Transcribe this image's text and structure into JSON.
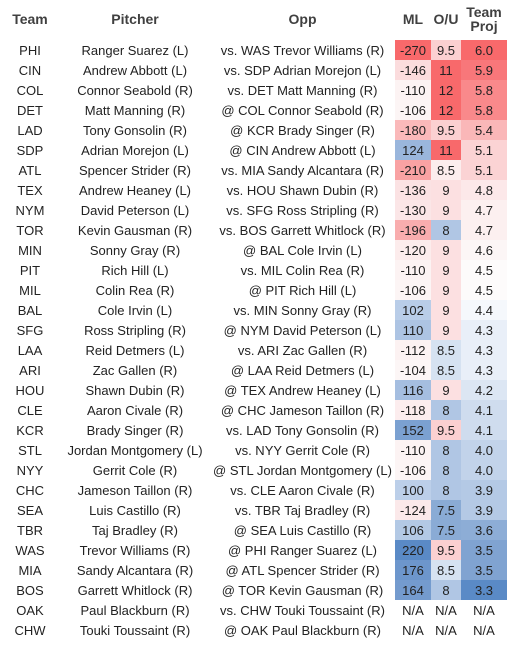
{
  "header": {
    "team": "Team",
    "pitcher": "Pitcher",
    "opp": "Opp",
    "ml": "ML",
    "ou": "O/U",
    "proj": "Team Proj"
  },
  "colors": {
    "red": "#f8696b",
    "blue": "#5a8ac6",
    "white": "#ffffff"
  },
  "rows": [
    {
      "team": "PHI",
      "pitcher": "Ranger Suarez (L)",
      "opp": "vs. WAS Trevor Williams (R)",
      "ml": "-270",
      "ou": "9.5",
      "proj": "6.0",
      "ml_c": "#f8696b",
      "ou_c": "#fbd0d1",
      "proj_c": "#f8696b"
    },
    {
      "team": "CIN",
      "pitcher": "Andrew Abbott (L)",
      "opp": "vs. SDP Adrian Morejon (L)",
      "ml": "-146",
      "ou": "11",
      "proj": "5.9",
      "ml_c": "#fbdcdd",
      "ou_c": "#f8696b",
      "proj_c": "#f8777a"
    },
    {
      "team": "COL",
      "pitcher": "Connor Seabold (R)",
      "opp": "vs. DET Matt Manning (R)",
      "ml": "-110",
      "ou": "12",
      "proj": "5.8",
      "ml_c": "#fcf3f3",
      "ou_c": "#f8696b",
      "proj_c": "#f9898b"
    },
    {
      "team": "DET",
      "pitcher": "Matt Manning (R)",
      "opp": "@ COL Connor Seabold (R)",
      "ml": "-106",
      "ou": "12",
      "proj": "5.8",
      "ml_c": "#fcf5f5",
      "ou_c": "#f8696b",
      "proj_c": "#f9898b"
    },
    {
      "team": "LAD",
      "pitcher": "Tony Gonsolin (R)",
      "opp": "@ KCR Brady Singer (R)",
      "ml": "-180",
      "ou": "9.5",
      "proj": "5.4",
      "ml_c": "#fab9ba",
      "ou_c": "#fbd0d1",
      "proj_c": "#fab7b8"
    },
    {
      "team": "SDP",
      "pitcher": "Adrian Morejon (L)",
      "opp": "@ CIN Andrew Abbott (L)",
      "ml": "124",
      "ou": "11",
      "proj": "5.1",
      "ml_c": "#9ab6dc",
      "ou_c": "#f8696b",
      "proj_c": "#fbd3d4"
    },
    {
      "team": "ATL",
      "pitcher": "Spencer Strider (R)",
      "opp": "vs. MIA Sandy Alcantara (R)",
      "ml": "-210",
      "ou": "8.5",
      "proj": "5.1",
      "ml_c": "#f9a2a3",
      "ou_c": "#fceded",
      "proj_c": "#fbd3d4"
    },
    {
      "team": "TEX",
      "pitcher": "Andrew Heaney (L)",
      "opp": "vs. HOU Shawn Dubin (R)",
      "ml": "-136",
      "ou": "9",
      "proj": "4.8",
      "ml_c": "#fbe2e3",
      "ou_c": "#fce0e1",
      "proj_c": "#fce8e9"
    },
    {
      "team": "NYM",
      "pitcher": "David Peterson (L)",
      "opp": "vs. SFG Ross Stripling (R)",
      "ml": "-130",
      "ou": "9",
      "proj": "4.7",
      "ml_c": "#fbe6e7",
      "ou_c": "#fce0e1",
      "proj_c": "#fcf0f0"
    },
    {
      "team": "TOR",
      "pitcher": "Kevin Gausman (R)",
      "opp": "vs. BOS Garrett Whitlock (R)",
      "ml": "-196",
      "ou": "8",
      "proj": "4.7",
      "ml_c": "#f9adae",
      "ou_c": "#b0c6e4",
      "proj_c": "#fcf0f0"
    },
    {
      "team": "MIN",
      "pitcher": "Sonny Gray (R)",
      "opp": "@ BAL Cole Irvin (L)",
      "ml": "-120",
      "ou": "9",
      "proj": "4.6",
      "ml_c": "#fcecec",
      "ou_c": "#fce0e1",
      "proj_c": "#fcf6f6"
    },
    {
      "team": "PIT",
      "pitcher": "Rich Hill (L)",
      "opp": "vs. MIL Colin Rea (R)",
      "ml": "-110",
      "ou": "9",
      "proj": "4.5",
      "ml_c": "#fcf3f3",
      "ou_c": "#fce0e1",
      "proj_c": "#fdfbfb"
    },
    {
      "team": "MIL",
      "pitcher": "Colin Rea (R)",
      "opp": "@ PIT Rich Hill (L)",
      "ml": "-106",
      "ou": "9",
      "proj": "4.5",
      "ml_c": "#fcf5f5",
      "ou_c": "#fce0e1",
      "proj_c": "#fdfbfb"
    },
    {
      "team": "BAL",
      "pitcher": "Cole Irvin (L)",
      "opp": "vs. MIN Sonny Gray (R)",
      "ml": "102",
      "ou": "9",
      "proj": "4.4",
      "ml_c": "#b9cde8",
      "ou_c": "#fce0e1",
      "proj_c": "#f5f8fc"
    },
    {
      "team": "SFG",
      "pitcher": "Ross Stripling (R)",
      "opp": "@ NYM David Peterson (L)",
      "ml": "110",
      "ou": "9",
      "proj": "4.3",
      "ml_c": "#adc4e3",
      "ou_c": "#fce0e1",
      "proj_c": "#e9eff8"
    },
    {
      "team": "LAA",
      "pitcher": "Reid Detmers (L)",
      "opp": "vs. ARI Zac Gallen (R)",
      "ml": "-112",
      "ou": "8.5",
      "proj": "4.3",
      "ml_c": "#fcf2f2",
      "ou_c": "#d6e2f1",
      "proj_c": "#e9eff8"
    },
    {
      "team": "ARI",
      "pitcher": "Zac Gallen (R)",
      "opp": "@ LAA Reid Detmers (L)",
      "ml": "-104",
      "ou": "8.5",
      "proj": "4.3",
      "ml_c": "#fcf6f6",
      "ou_c": "#d6e2f1",
      "proj_c": "#e9eff8"
    },
    {
      "team": "HOU",
      "pitcher": "Shawn Dubin (R)",
      "opp": "@ TEX Andrew Heaney (L)",
      "ml": "116",
      "ou": "9",
      "proj": "4.2",
      "ml_c": "#a5bee0",
      "ou_c": "#fce0e1",
      "proj_c": "#dce6f3"
    },
    {
      "team": "CLE",
      "pitcher": "Aaron Civale (R)",
      "opp": "@ CHC Jameson Taillon (R)",
      "ml": "-118",
      "ou": "8",
      "proj": "4.1",
      "ml_c": "#fcedee",
      "ou_c": "#b0c6e4",
      "proj_c": "#cfdcee"
    },
    {
      "team": "KCR",
      "pitcher": "Brady Singer (R)",
      "opp": "vs. LAD Tony Gonsolin (R)",
      "ml": "152",
      "ou": "9.5",
      "proj": "4.1",
      "ml_c": "#7ba1d1",
      "ou_c": "#fbd0d1",
      "proj_c": "#cfdcee"
    },
    {
      "team": "STL",
      "pitcher": "Jordan Montgomery (L)",
      "opp": "vs. NYY Gerrit Cole (R)",
      "ml": "-110",
      "ou": "8",
      "proj": "4.0",
      "ml_c": "#fcf3f3",
      "ou_c": "#b0c6e4",
      "proj_c": "#c2d3ea"
    },
    {
      "team": "NYY",
      "pitcher": "Gerrit Cole (R)",
      "opp": "@ STL Jordan Montgomery (L)",
      "ml": "-106",
      "ou": "8",
      "proj": "4.0",
      "ml_c": "#fcf5f5",
      "ou_c": "#b0c6e4",
      "proj_c": "#c2d3ea"
    },
    {
      "team": "CHC",
      "pitcher": "Jameson Taillon (R)",
      "opp": "vs. CLE Aaron Civale (R)",
      "ml": "100",
      "ou": "8",
      "proj": "3.9",
      "ml_c": "#bccfe9",
      "ou_c": "#b0c6e4",
      "proj_c": "#b4c9e5"
    },
    {
      "team": "SEA",
      "pitcher": "Luis Castillo (R)",
      "opp": "vs. TBR Taj Bradley (R)",
      "ml": "-124",
      "ou": "7.5",
      "proj": "3.9",
      "ml_c": "#fbe9ea",
      "ou_c": "#8aabd5",
      "proj_c": "#b4c9e5"
    },
    {
      "team": "TBR",
      "pitcher": "Taj Bradley (R)",
      "opp": "@ SEA Luis Castillo (R)",
      "ml": "106",
      "ou": "7.5",
      "proj": "3.6",
      "ml_c": "#b3c9e5",
      "ou_c": "#8aabd5",
      "proj_c": "#8dadd6"
    },
    {
      "team": "WAS",
      "pitcher": "Trevor Williams (R)",
      "opp": "@ PHI Ranger Suarez (L)",
      "ml": "220",
      "ou": "9.5",
      "proj": "3.5",
      "ml_c": "#5a8ac6",
      "ou_c": "#fbd0d1",
      "proj_c": "#80a3d1"
    },
    {
      "team": "MIA",
      "pitcher": "Sandy Alcantara (R)",
      "opp": "@ ATL Spencer Strider (R)",
      "ml": "176",
      "ou": "8.5",
      "proj": "3.5",
      "ml_c": "#6d96cc",
      "ou_c": "#d6e2f1",
      "proj_c": "#80a3d1"
    },
    {
      "team": "BOS",
      "pitcher": "Garrett Whitlock (R)",
      "opp": "@ TOR Kevin Gausman (R)",
      "ml": "164",
      "ou": "8",
      "proj": "3.3",
      "ml_c": "#749bce",
      "ou_c": "#b0c6e4",
      "proj_c": "#5a8ac6"
    },
    {
      "team": "OAK",
      "pitcher": "Paul Blackburn (R)",
      "opp": "vs. CHW Touki Toussaint (R)",
      "ml": "N/A",
      "ou": "N/A",
      "proj": "N/A",
      "ml_c": "#ffffff",
      "ou_c": "#ffffff",
      "proj_c": "#ffffff"
    },
    {
      "team": "CHW",
      "pitcher": "Touki Toussaint (R)",
      "opp": "@ OAK Paul Blackburn (R)",
      "ml": "N/A",
      "ou": "N/A",
      "proj": "N/A",
      "ml_c": "#ffffff",
      "ou_c": "#ffffff",
      "proj_c": "#ffffff"
    }
  ]
}
